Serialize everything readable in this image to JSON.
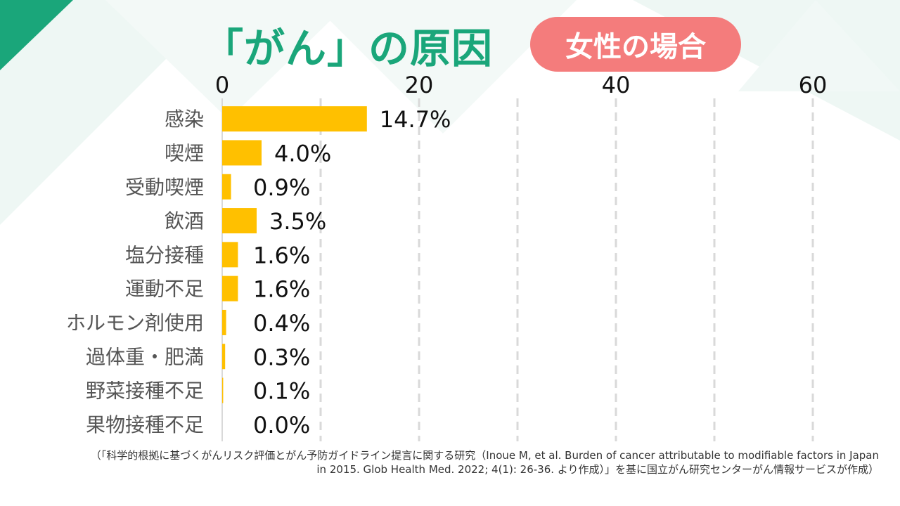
{
  "header": {
    "title": "「がん」の原因",
    "badge": "女性の場合"
  },
  "colors": {
    "accent_title": "#1aa67a",
    "badge": "#f47c7c",
    "bar": "#ffc000",
    "grid": "#d9d9d9"
  },
  "chart_data": {
    "type": "bar",
    "orientation": "horizontal",
    "categories": [
      "感染",
      "喫煙",
      "受動喫煙",
      "飲酒",
      "塩分接種",
      "運動不足",
      "ホルモン剤使用",
      "過体重・肥満",
      "野菜接種不足",
      "果物接種不足"
    ],
    "values": [
      14.7,
      4.0,
      0.9,
      3.5,
      1.6,
      1.6,
      0.4,
      0.3,
      0.1,
      0.0
    ],
    "value_labels": [
      "14.7%",
      "4.0%",
      "0.9%",
      "3.5%",
      "1.6%",
      "1.6%",
      "0.4%",
      "0.3%",
      "0.1%",
      "0.0%"
    ],
    "xticks": [
      "0",
      "20",
      "40",
      "60"
    ],
    "xlim": [
      0,
      60
    ],
    "gridlines": "dashed vertical every 10",
    "axis_position": "top"
  },
  "source": {
    "line1": "（「科学的根拠に基づくがんリスク評価とがん予防ガイドライン提言に関する研究（Inoue M, et al. Burden of cancer attributable to modifiable factors in Japan",
    "line2": "in 2015. Glob Health Med. 2022; 4(1): 26-36. より作成）」を基に国立がん研究センターがん情報サービスが作成）"
  }
}
